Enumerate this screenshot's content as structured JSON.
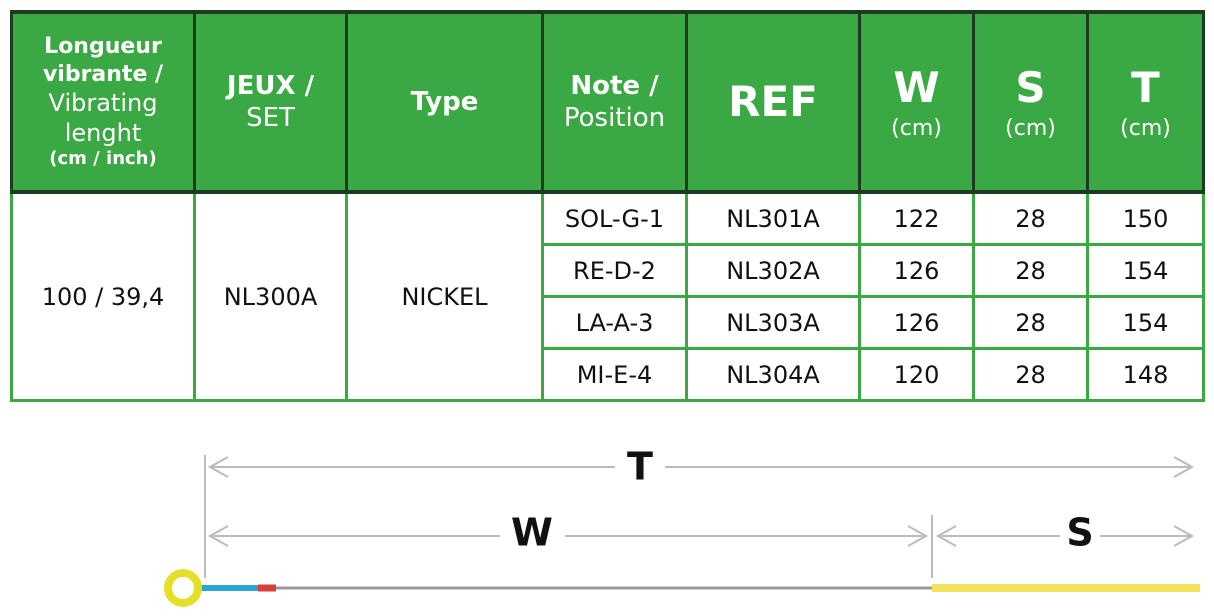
{
  "header": [
    [
      "Longueur",
      "vibrante /",
      "Vibrating",
      "lenght",
      "(cm / inch)"
    ],
    [
      "JEUX /",
      "SET"
    ],
    [
      "Type"
    ],
    [
      "Note /",
      "Position"
    ],
    [
      "REF"
    ],
    [
      "W",
      "(cm)"
    ],
    [
      "S",
      "(cm)"
    ],
    [
      "T",
      "(cm)"
    ]
  ],
  "group": {
    "length": "100 / 39,4",
    "set": "NL300A",
    "type": "NICKEL"
  },
  "rows": [
    [
      "SOL-G-1",
      "NL301A",
      122,
      28,
      150
    ],
    [
      "RE-D-2",
      "NL302A",
      126,
      28,
      154
    ],
    [
      "LA-A-3",
      "NL303A",
      126,
      28,
      154
    ],
    [
      "MI-E-4",
      "NL304A",
      120,
      28,
      148
    ]
  ],
  "diagram": {
    "total": "T",
    "vibrating": "W",
    "spare": "S"
  }
}
